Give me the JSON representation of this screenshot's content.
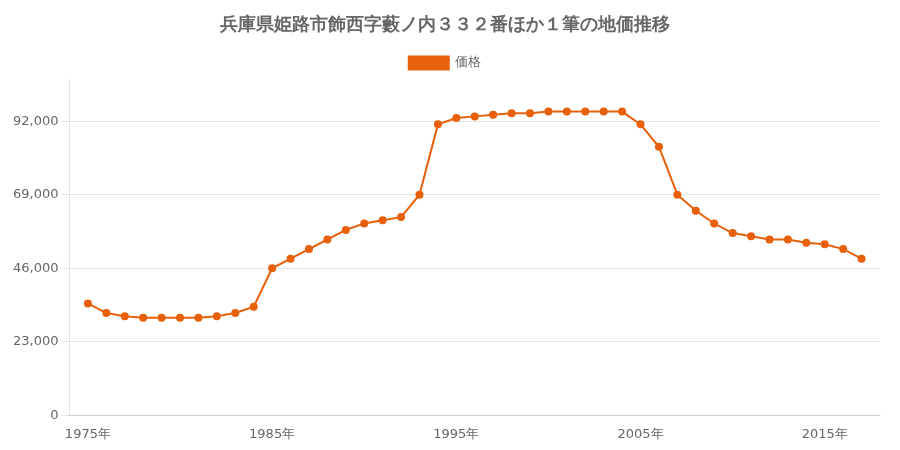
{
  "chart_data": {
    "type": "line",
    "title": "兵庫県姫路市飾西字藪ノ内３３２番ほか１筆の地価推移",
    "x": [
      1975,
      1976,
      1977,
      1978,
      1979,
      1980,
      1981,
      1982,
      1983,
      1984,
      1985,
      1986,
      1987,
      1988,
      1989,
      1990,
      1991,
      1992,
      1993,
      1994,
      1995,
      1996,
      1997,
      1998,
      1999,
      2000,
      2001,
      2002,
      2003,
      2004,
      2005,
      2006,
      2007,
      2008,
      2009,
      2010,
      2011,
      2012,
      2013,
      2014,
      2015,
      2016,
      2017
    ],
    "series": [
      {
        "name": "価格",
        "color": "#e8600a",
        "marker": "circle",
        "values": [
          35000,
          32000,
          31000,
          30500,
          30500,
          30500,
          30500,
          31000,
          32000,
          34000,
          46000,
          49000,
          52000,
          55000,
          58000,
          60000,
          61000,
          62000,
          69000,
          91000,
          93000,
          93500,
          94000,
          94500,
          94500,
          95000,
          95000,
          95000,
          95000,
          95000,
          91000,
          84000,
          69000,
          64000,
          60000,
          57000,
          56000,
          55000,
          55000,
          54000,
          53500,
          52000,
          49000
        ]
      }
    ],
    "xlim": [
      1974,
      2018
    ],
    "xticks": [
      {
        "value": 1975,
        "label": "1975年"
      },
      {
        "value": 1985,
        "label": "1985年"
      },
      {
        "value": 1995,
        "label": "1995年"
      },
      {
        "value": 2005,
        "label": "2005年"
      },
      {
        "value": 2015,
        "label": "2015年"
      }
    ],
    "ylim": [
      0,
      105000
    ],
    "yticks": [
      0,
      {
        "value": 23000,
        "label": "23,000"
      },
      {
        "value": 46000,
        "label": "46,000"
      },
      {
        "value": 69000,
        "label": "69,000"
      },
      {
        "value": 92000,
        "label": "92,000"
      }
    ],
    "grid": "y",
    "legend": "top"
  }
}
